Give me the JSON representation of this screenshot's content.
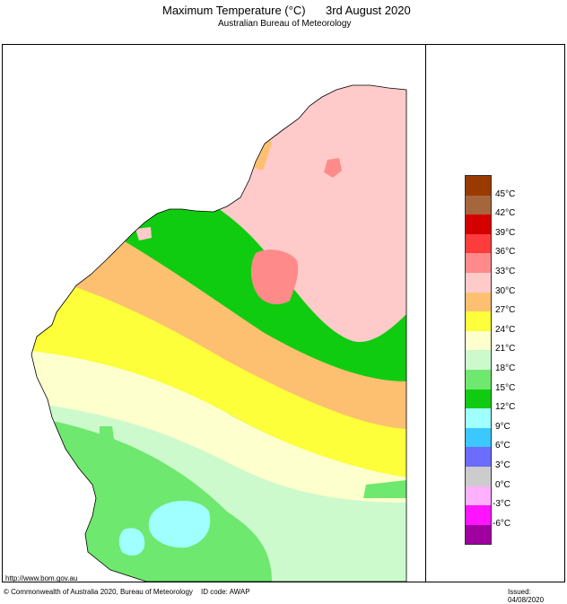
{
  "header": {
    "title": "Maximum Temperature (°C)",
    "date": "3rd August 2020",
    "subtitle": "Australian Bureau of Meteorology"
  },
  "legend": {
    "entries": [
      {
        "label": "45°C",
        "color": "#9a3a00"
      },
      {
        "label": "42°C",
        "color": "#a5663c"
      },
      {
        "label": "39°C",
        "color": "#d40000"
      },
      {
        "label": "36°C",
        "color": "#ff3c3c"
      },
      {
        "label": "33°C",
        "color": "#ff8a8a"
      },
      {
        "label": "30°C",
        "color": "#ffcaca"
      },
      {
        "label": "27°C",
        "color": "#fcc070"
      },
      {
        "label": "24°C",
        "color": "#fcff3a"
      },
      {
        "label": "21°C",
        "color": "#fdffcc"
      },
      {
        "label": "18°C",
        "color": "#ccfacc"
      },
      {
        "label": "15°C",
        "color": "#6ee86e"
      },
      {
        "label": "12°C",
        "color": "#10cc10"
      },
      {
        "label": "9°C",
        "color": "#a0ffff"
      },
      {
        "label": "6°C",
        "color": "#3ac8ff"
      },
      {
        "label": "3°C",
        "color": "#6c6cff"
      },
      {
        "label": "0°C",
        "color": "#cccccc"
      },
      {
        "label": "-3°C",
        "color": "#ffb0ff"
      },
      {
        "label": "-6°C",
        "color": "#ff14ff"
      },
      {
        "extra_color": "#a000a0"
      }
    ]
  },
  "footer": {
    "url": "http://www.bom.gov.au",
    "copyright": "© Commonwealth of Australia 2020, Bureau of Meteorology",
    "id_code": "ID code: AWAP",
    "issued": "Issued: 04/08/2020"
  }
}
